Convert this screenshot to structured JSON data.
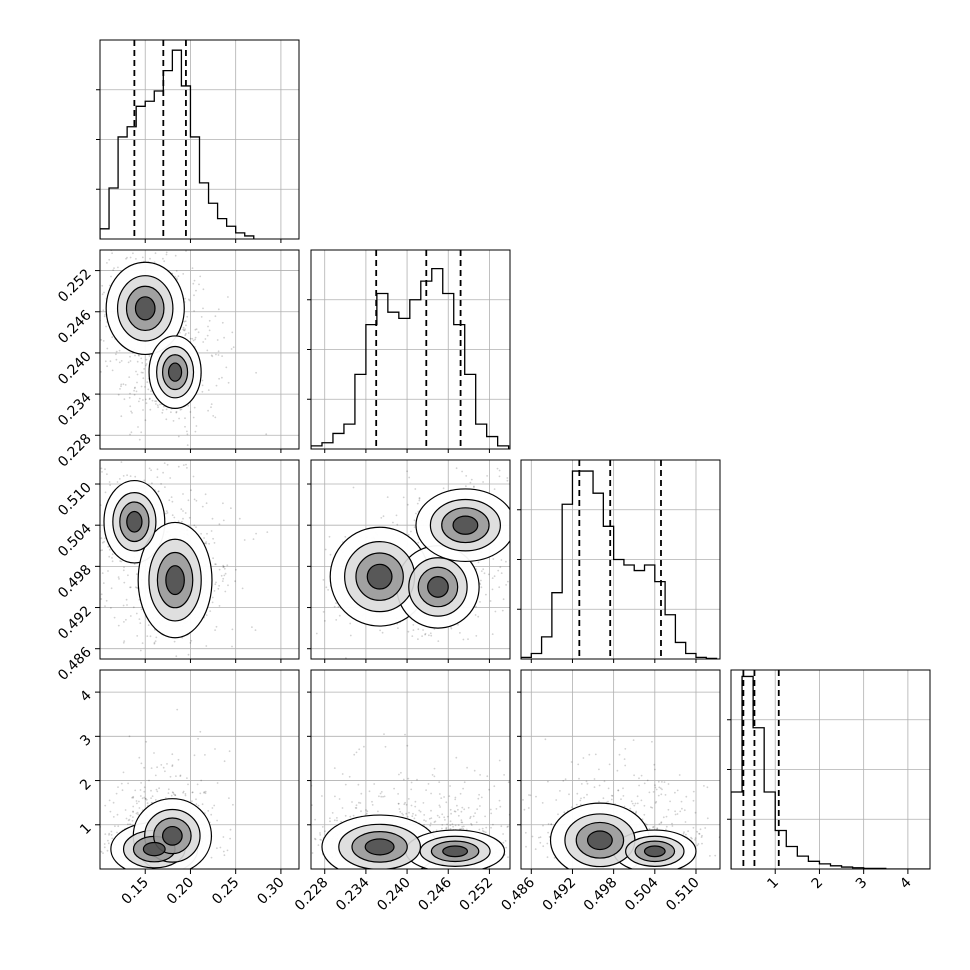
{
  "chart_data": {
    "type": "corner",
    "grid": true,
    "colors": {
      "line": "#000000",
      "grid": "#b0b0b0",
      "scatter": "#000000",
      "background": "#ffffff"
    },
    "axes": [
      {
        "range": [
          0.1,
          0.32
        ],
        "ticks": [
          0.15,
          0.2,
          0.25,
          0.3
        ],
        "tick_labels": [
          "0.15",
          "0.20",
          "0.25",
          "0.30"
        ]
      },
      {
        "range": [
          0.226,
          0.255
        ],
        "ticks": [
          0.228,
          0.234,
          0.24,
          0.246,
          0.252
        ],
        "tick_labels": [
          "0.228",
          "0.234",
          "0.240",
          "0.246",
          "0.252"
        ]
      },
      {
        "range": [
          0.4845,
          0.5135
        ],
        "ticks": [
          0.486,
          0.492,
          0.498,
          0.504,
          0.51
        ],
        "tick_labels": [
          "0.486",
          "0.492",
          "0.498",
          "0.504",
          "0.510"
        ]
      },
      {
        "range": [
          0.0,
          4.5
        ],
        "ticks": [
          1,
          2,
          3,
          4
        ],
        "tick_labels": [
          "1",
          "2",
          "3",
          "4"
        ]
      }
    ],
    "histograms": [
      {
        "dim": 0,
        "bin_edges": [
          0.1,
          0.11,
          0.12,
          0.13,
          0.14,
          0.15,
          0.16,
          0.17,
          0.18,
          0.19,
          0.2,
          0.21,
          0.22,
          0.23,
          0.24,
          0.25,
          0.26,
          0.27
        ],
        "counts": [
          20,
          100,
          200,
          220,
          260,
          270,
          290,
          330,
          370,
          300,
          200,
          110,
          70,
          40,
          25,
          12,
          6
        ],
        "max": 390,
        "quantiles": [
          0.138,
          0.17,
          0.195
        ]
      },
      {
        "dim": 1,
        "bin_edges": [
          0.226,
          0.2276,
          0.2292,
          0.2308,
          0.2324,
          0.234,
          0.2356,
          0.2372,
          0.2388,
          0.2404,
          0.242,
          0.2436,
          0.2452,
          0.2468,
          0.2484,
          0.25,
          0.2516,
          0.2532,
          0.2548
        ],
        "counts": [
          5,
          10,
          25,
          40,
          120,
          200,
          250,
          220,
          210,
          240,
          270,
          290,
          250,
          200,
          120,
          40,
          20,
          5
        ],
        "max": 320,
        "quantiles": [
          0.2355,
          0.2428,
          0.2478
        ]
      },
      {
        "dim": 2,
        "bin_edges": [
          0.4845,
          0.486,
          0.4875,
          0.489,
          0.4905,
          0.492,
          0.4935,
          0.495,
          0.4965,
          0.498,
          0.4995,
          0.501,
          0.5025,
          0.504,
          0.5055,
          0.507,
          0.5085,
          0.51,
          0.5115,
          0.513
        ],
        "counts": [
          3,
          10,
          40,
          120,
          280,
          340,
          340,
          300,
          240,
          180,
          170,
          160,
          170,
          140,
          80,
          30,
          10,
          3,
          1
        ],
        "max": 360,
        "quantiles": [
          0.493,
          0.4975,
          0.5049
        ]
      },
      {
        "dim": 3,
        "bin_edges": [
          0.0,
          0.25,
          0.5,
          0.75,
          1.0,
          1.25,
          1.5,
          1.75,
          2.0,
          2.25,
          2.5,
          2.75,
          3.0,
          3.25,
          3.5,
          3.75,
          4.0,
          4.25,
          4.5
        ],
        "counts": [
          120,
          300,
          220,
          120,
          60,
          35,
          20,
          12,
          8,
          5,
          3,
          2,
          1,
          1,
          0,
          0,
          0,
          0
        ],
        "max": 310,
        "quantiles": [
          0.28,
          0.53,
          1.08
        ]
      }
    ],
    "pairs": [
      {
        "x_dim": 0,
        "y_dim": 1,
        "modes": [
          {
            "x": 0.15,
            "y": 0.2465,
            "sx": 0.018,
            "sy": 0.0028,
            "w": 1.0
          },
          {
            "x": 0.183,
            "y": 0.2372,
            "sx": 0.012,
            "sy": 0.0022,
            "w": 0.8
          }
        ],
        "spread": [
          0.035,
          0.005
        ]
      },
      {
        "x_dim": 0,
        "y_dim": 2,
        "modes": [
          {
            "x": 0.138,
            "y": 0.5045,
            "sx": 0.014,
            "sy": 0.0025,
            "w": 0.6
          },
          {
            "x": 0.183,
            "y": 0.496,
            "sx": 0.017,
            "sy": 0.0035,
            "w": 1.0
          }
        ],
        "spread": [
          0.035,
          0.0055
        ]
      },
      {
        "x_dim": 1,
        "y_dim": 2,
        "modes": [
          {
            "x": 0.236,
            "y": 0.4965,
            "sx": 0.003,
            "sy": 0.003,
            "w": 1.0
          },
          {
            "x": 0.2445,
            "y": 0.495,
            "sx": 0.0025,
            "sy": 0.0025,
            "w": 0.9
          },
          {
            "x": 0.2485,
            "y": 0.504,
            "sx": 0.003,
            "sy": 0.0022,
            "w": 0.8
          }
        ],
        "spread": [
          0.0045,
          0.0045
        ]
      },
      {
        "x_dim": 0,
        "y_dim": 3,
        "modes": [
          {
            "x": 0.16,
            "y": 0.45,
            "sx": 0.02,
            "sy": 0.25,
            "w": 0.9
          },
          {
            "x": 0.18,
            "y": 0.75,
            "sx": 0.018,
            "sy": 0.35,
            "w": 0.7
          }
        ],
        "spread": [
          0.03,
          0.9
        ]
      },
      {
        "x_dim": 1,
        "y_dim": 3,
        "modes": [
          {
            "x": 0.236,
            "y": 0.5,
            "sx": 0.0035,
            "sy": 0.3,
            "w": 0.9
          },
          {
            "x": 0.247,
            "y": 0.4,
            "sx": 0.003,
            "sy": 0.2,
            "w": 1.0
          }
        ],
        "spread": [
          0.0055,
          0.9
        ]
      },
      {
        "x_dim": 2,
        "y_dim": 3,
        "modes": [
          {
            "x": 0.496,
            "y": 0.65,
            "sx": 0.003,
            "sy": 0.35,
            "w": 1.0
          },
          {
            "x": 0.504,
            "y": 0.4,
            "sx": 0.0025,
            "sy": 0.2,
            "w": 0.8
          }
        ],
        "spread": [
          0.0045,
          0.9
        ]
      }
    ]
  }
}
